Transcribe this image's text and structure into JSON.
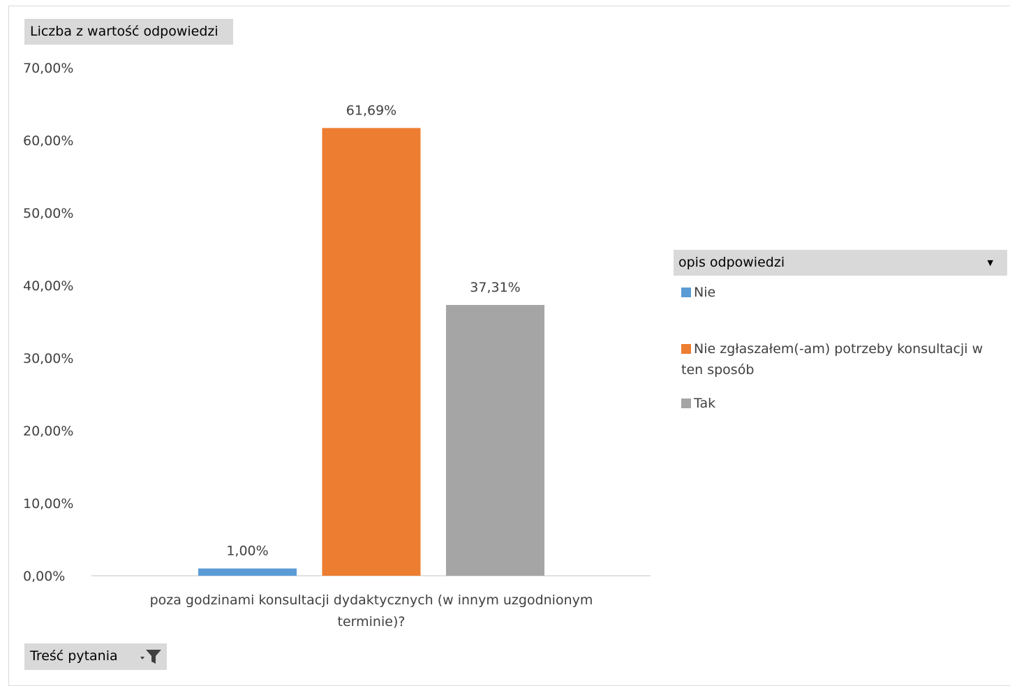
{
  "value_field": {
    "label": "Liczba z wartość odpowiedzi"
  },
  "axis_field": {
    "label": "Treść pytania"
  },
  "legend": {
    "title": "opis odpowiedzi",
    "items": [
      {
        "label": "Nie",
        "color": "#5b9bd5"
      },
      {
        "label": "Nie zgłaszałem(-am) potrzeby konsultacji w ten sposób",
        "color": "#ed7d31"
      },
      {
        "label": "Tak",
        "color": "#a5a5a5"
      }
    ]
  },
  "chart_data": {
    "type": "bar",
    "categories": [
      "poza godzinami konsultacji dydaktycznych (w innym uzgodnionym terminie)?"
    ],
    "category_lines": [
      "poza godzinami konsultacji dydaktycznych (w innym uzgodnionym",
      "terminie)?"
    ],
    "series": [
      {
        "name": "Nie",
        "values": [
          1.0
        ],
        "label": "1,00%",
        "color": "#5b9bd5"
      },
      {
        "name": "Nie zgłaszałem(-am) potrzeby konsultacji w ten sposób",
        "values": [
          61.69
        ],
        "label": "61,69%",
        "color": "#ed7d31"
      },
      {
        "name": "Tak",
        "values": [
          37.31
        ],
        "label": "37,31%",
        "color": "#a5a5a5"
      }
    ],
    "ylim": [
      0,
      70
    ],
    "yticks": [
      0,
      10,
      20,
      30,
      40,
      50,
      60,
      70
    ],
    "ytick_labels": [
      "0,00%",
      "10,00%",
      "20,00%",
      "30,00%",
      "40,00%",
      "50,00%",
      "60,00%",
      "70,00%"
    ],
    "grid": false,
    "legend_position": "right"
  }
}
